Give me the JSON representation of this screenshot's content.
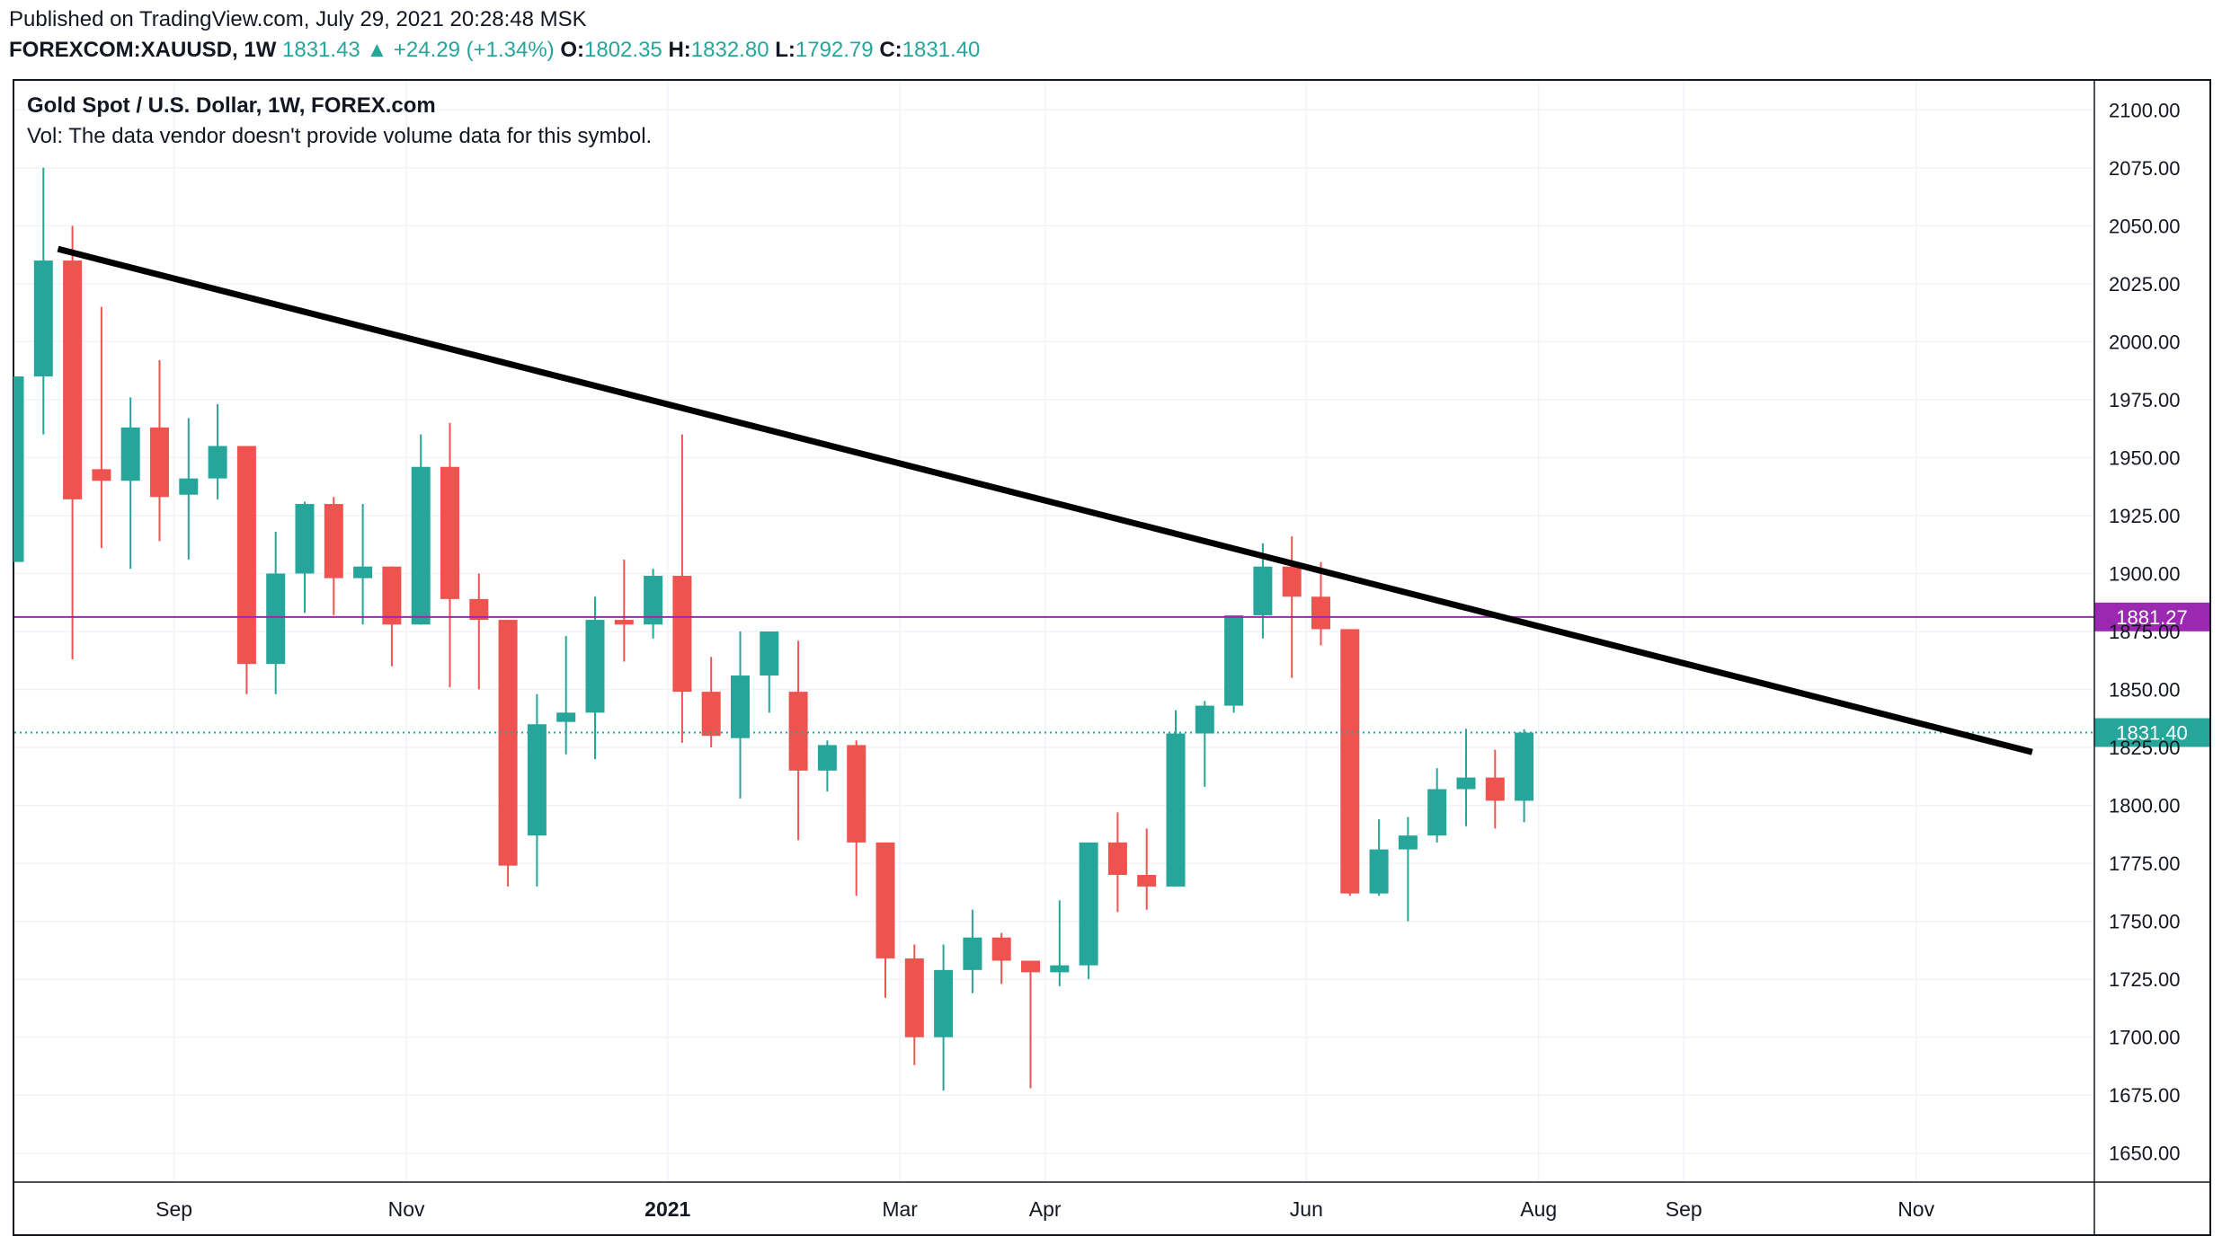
{
  "header": {
    "published": "Published on TradingView.com, July 29, 2021 20:28:48 MSK",
    "symbol": "FOREXCOM:XAUUSD, 1W",
    "last": "1831.43",
    "change": "▲ +24.29 (+1.34%)",
    "open_label": "O:",
    "open": "1802.35",
    "high_label": "H:",
    "high": "1832.80",
    "low_label": "L:",
    "low": "1792.79",
    "close_label": "C:",
    "close": "1831.40"
  },
  "legend": {
    "title": "Gold Spot / U.S. Dollar, 1W, FOREX.com",
    "volume_note": "Vol: The data vendor doesn't provide volume data for this symbol."
  },
  "colors": {
    "up": "#26a69a",
    "down": "#ef5350",
    "level": "#9c27b0",
    "trend": "#000000"
  },
  "chart_data": {
    "type": "candlestick",
    "ylim": [
      1637.5,
      2112.5
    ],
    "yticks": [
      1650,
      1675,
      1700,
      1725,
      1750,
      1775,
      1800,
      1825,
      1850,
      1875,
      1900,
      1925,
      1950,
      1975,
      2000,
      2025,
      2050,
      2075,
      2100
    ],
    "xticks": [
      {
        "label": "Sep",
        "week": 5.5,
        "bold": false
      },
      {
        "label": "Nov",
        "week": 13.5,
        "bold": false
      },
      {
        "label": "2021",
        "week": 22.5,
        "bold": true
      },
      {
        "label": "Mar",
        "week": 30.5,
        "bold": false
      },
      {
        "label": "Apr",
        "week": 35.5,
        "bold": false
      },
      {
        "label": "Jun",
        "week": 44.5,
        "bold": false
      },
      {
        "label": "Aug",
        "week": 52.5,
        "bold": false
      },
      {
        "label": "Sep",
        "week": 57.5,
        "bold": false
      },
      {
        "label": "Nov",
        "week": 65.5,
        "bold": false
      }
    ],
    "candles": [
      {
        "o": 1905,
        "h": 1985,
        "l": 1905,
        "c": 1985
      },
      {
        "o": 1985,
        "h": 2075,
        "l": 1960,
        "c": 2035
      },
      {
        "o": 2035,
        "h": 2050,
        "l": 1863,
        "c": 1932
      },
      {
        "o": 1945,
        "h": 2015,
        "l": 1911,
        "c": 1940
      },
      {
        "o": 1940,
        "h": 1976,
        "l": 1902,
        "c": 1963
      },
      {
        "o": 1963,
        "h": 1992,
        "l": 1914,
        "c": 1933
      },
      {
        "o": 1934,
        "h": 1967,
        "l": 1906,
        "c": 1941
      },
      {
        "o": 1941,
        "h": 1973,
        "l": 1932,
        "c": 1955
      },
      {
        "o": 1955,
        "h": 1955,
        "l": 1848,
        "c": 1861
      },
      {
        "o": 1861,
        "h": 1918,
        "l": 1848,
        "c": 1900
      },
      {
        "o": 1900,
        "h": 1931,
        "l": 1883,
        "c": 1930
      },
      {
        "o": 1930,
        "h": 1933,
        "l": 1882,
        "c": 1898
      },
      {
        "o": 1898,
        "h": 1930,
        "l": 1878,
        "c": 1903
      },
      {
        "o": 1903,
        "h": 1903,
        "l": 1860,
        "c": 1878
      },
      {
        "o": 1878,
        "h": 1960,
        "l": 1878,
        "c": 1946
      },
      {
        "o": 1946,
        "h": 1965,
        "l": 1851,
        "c": 1889
      },
      {
        "o": 1889,
        "h": 1900,
        "l": 1850,
        "c": 1880
      },
      {
        "o": 1880,
        "h": 1880,
        "l": 1765,
        "c": 1774
      },
      {
        "o": 1787,
        "h": 1848,
        "l": 1765,
        "c": 1835
      },
      {
        "o": 1836,
        "h": 1873,
        "l": 1822,
        "c": 1840
      },
      {
        "o": 1840,
        "h": 1890,
        "l": 1820,
        "c": 1880
      },
      {
        "o": 1880,
        "h": 1906,
        "l": 1862,
        "c": 1878
      },
      {
        "o": 1878,
        "h": 1902,
        "l": 1872,
        "c": 1899
      },
      {
        "o": 1899,
        "h": 1960,
        "l": 1827,
        "c": 1849
      },
      {
        "o": 1849,
        "h": 1864,
        "l": 1825,
        "c": 1830
      },
      {
        "o": 1829,
        "h": 1875,
        "l": 1803,
        "c": 1856
      },
      {
        "o": 1856,
        "h": 1875,
        "l": 1840,
        "c": 1875
      },
      {
        "o": 1849,
        "h": 1871,
        "l": 1785,
        "c": 1815
      },
      {
        "o": 1815,
        "h": 1828,
        "l": 1806,
        "c": 1826
      },
      {
        "o": 1826,
        "h": 1828,
        "l": 1761,
        "c": 1784
      },
      {
        "o": 1784,
        "h": 1784,
        "l": 1717,
        "c": 1734
      },
      {
        "o": 1734,
        "h": 1740,
        "l": 1688,
        "c": 1700
      },
      {
        "o": 1700,
        "h": 1740,
        "l": 1677,
        "c": 1729
      },
      {
        "o": 1729,
        "h": 1755,
        "l": 1719,
        "c": 1743
      },
      {
        "o": 1743,
        "h": 1745,
        "l": 1723,
        "c": 1733
      },
      {
        "o": 1733,
        "h": 1733,
        "l": 1678,
        "c": 1728
      },
      {
        "o": 1728,
        "h": 1759,
        "l": 1722,
        "c": 1731
      },
      {
        "o": 1731,
        "h": 1784,
        "l": 1725,
        "c": 1784
      },
      {
        "o": 1784,
        "h": 1797,
        "l": 1754,
        "c": 1770
      },
      {
        "o": 1770,
        "h": 1790,
        "l": 1755,
        "c": 1765
      },
      {
        "o": 1765,
        "h": 1841,
        "l": 1765,
        "c": 1831
      },
      {
        "o": 1831,
        "h": 1845,
        "l": 1808,
        "c": 1843
      },
      {
        "o": 1843,
        "h": 1882,
        "l": 1840,
        "c": 1882
      },
      {
        "o": 1882,
        "h": 1913,
        "l": 1872,
        "c": 1903
      },
      {
        "o": 1903,
        "h": 1916,
        "l": 1855,
        "c": 1890
      },
      {
        "o": 1890,
        "h": 1905,
        "l": 1869,
        "c": 1876
      },
      {
        "o": 1876,
        "h": 1876,
        "l": 1761,
        "c": 1762
      },
      {
        "o": 1762,
        "h": 1794,
        "l": 1761,
        "c": 1781
      },
      {
        "o": 1781,
        "h": 1795,
        "l": 1750,
        "c": 1787
      },
      {
        "o": 1787,
        "h": 1816,
        "l": 1784,
        "c": 1807
      },
      {
        "o": 1807,
        "h": 1833,
        "l": 1791,
        "c": 1812
      },
      {
        "o": 1812,
        "h": 1824,
        "l": 1790,
        "c": 1802
      },
      {
        "o": 1802,
        "h": 1832.8,
        "l": 1792.79,
        "c": 1831.4
      }
    ],
    "level_lines": [
      {
        "price": 1881.27,
        "label": "1881.27",
        "style": "solid",
        "color": "#9c27b0"
      },
      {
        "price": 1831.4,
        "label": "1831.40",
        "style": "dotted",
        "color": "#26a69a"
      }
    ],
    "trendline": {
      "start": {
        "week": 1.5,
        "price": 2040
      },
      "end": {
        "week": 69.5,
        "price": 1823
      }
    }
  }
}
